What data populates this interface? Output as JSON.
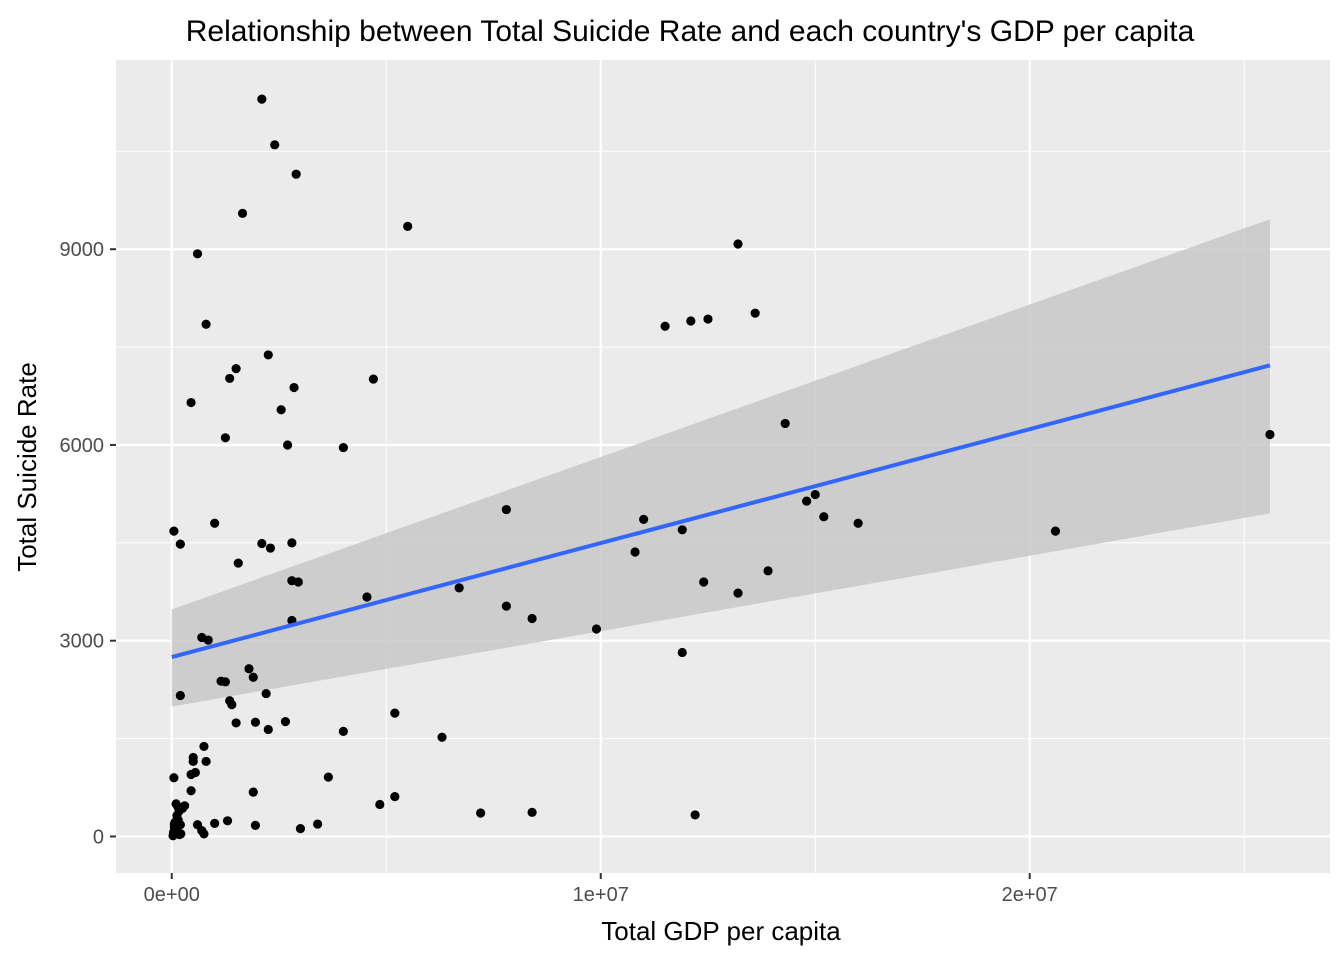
{
  "chart_data": {
    "type": "scatter",
    "title": "Relationship between Total Suicide Rate and each country's GDP per capita",
    "xlabel": "Total GDP per capita",
    "ylabel": "Total Suicide Rate",
    "xlim": [
      -1300000,
      27000000
    ],
    "ylim": [
      -560,
      11900
    ],
    "x_ticks": [
      {
        "value": 0,
        "label": "0e+00"
      },
      {
        "value": 10000000,
        "label": "1e+07"
      },
      {
        "value": 20000000,
        "label": "2e+07"
      }
    ],
    "y_ticks": [
      {
        "value": 0,
        "label": "0"
      },
      {
        "value": 3000,
        "label": "3000"
      },
      {
        "value": 6000,
        "label": "6000"
      },
      {
        "value": 9000,
        "label": "9000"
      }
    ],
    "grid": true,
    "legend": "none",
    "colors": {
      "panel": "#ebebeb",
      "grid": "#ffffff",
      "points": "#000000",
      "fit_line": "#3366ff",
      "confidence_band": "#c8c8c8"
    },
    "fit": {
      "method": "linear",
      "x": [
        0,
        25600000
      ],
      "y": [
        2750,
        7220
      ],
      "ci_lower": [
        1990,
        4950
      ],
      "ci_upper": [
        3480,
        9460
      ]
    },
    "points": [
      [
        2100000,
        11300
      ],
      [
        2400000,
        10600
      ],
      [
        2900000,
        10150
      ],
      [
        1650000,
        9550
      ],
      [
        5500000,
        9350
      ],
      [
        600000,
        8930
      ],
      [
        13200000,
        9080
      ],
      [
        12500000,
        7930
      ],
      [
        12100000,
        7900
      ],
      [
        11500000,
        7820
      ],
      [
        13600000,
        8020
      ],
      [
        800000,
        7850
      ],
      [
        1500000,
        7170
      ],
      [
        1350000,
        7020
      ],
      [
        2250000,
        7380
      ],
      [
        2850000,
        6880
      ],
      [
        4700000,
        7010
      ],
      [
        450000,
        6650
      ],
      [
        2550000,
        6540
      ],
      [
        2700000,
        6000
      ],
      [
        4000000,
        5960
      ],
      [
        1250000,
        6110
      ],
      [
        14300000,
        6330
      ],
      [
        25600000,
        6160
      ],
      [
        7800000,
        5010
      ],
      [
        11000000,
        4860
      ],
      [
        10800000,
        4360
      ],
      [
        11900000,
        4700
      ],
      [
        15000000,
        5240
      ],
      [
        14800000,
        5140
      ],
      [
        15200000,
        4900
      ],
      [
        16000000,
        4800
      ],
      [
        20600000,
        4680
      ],
      [
        50000,
        4680
      ],
      [
        200000,
        4480
      ],
      [
        1000000,
        4800
      ],
      [
        2100000,
        4490
      ],
      [
        2300000,
        4420
      ],
      [
        2800000,
        4500
      ],
      [
        1550000,
        4190
      ],
      [
        2800000,
        3920
      ],
      [
        2950000,
        3900
      ],
      [
        4550000,
        3670
      ],
      [
        6700000,
        3810
      ],
      [
        7800000,
        3530
      ],
      [
        8400000,
        3340
      ],
      [
        9900000,
        3180
      ],
      [
        12400000,
        3900
      ],
      [
        13900000,
        4070
      ],
      [
        13200000,
        3730
      ],
      [
        11900000,
        2820
      ],
      [
        2800000,
        3310
      ],
      [
        700000,
        3050
      ],
      [
        850000,
        3010
      ],
      [
        1150000,
        2380
      ],
      [
        1250000,
        2370
      ],
      [
        1800000,
        2570
      ],
      [
        1900000,
        2440
      ],
      [
        2200000,
        2190
      ],
      [
        200000,
        2160
      ],
      [
        1350000,
        2080
      ],
      [
        1400000,
        2020
      ],
      [
        1500000,
        1740
      ],
      [
        1950000,
        1750
      ],
      [
        2250000,
        1640
      ],
      [
        2650000,
        1760
      ],
      [
        4000000,
        1610
      ],
      [
        5200000,
        1890
      ],
      [
        6300000,
        1520
      ],
      [
        750000,
        1380
      ],
      [
        500000,
        1150
      ],
      [
        500000,
        1210
      ],
      [
        800000,
        1150
      ],
      [
        450000,
        950
      ],
      [
        550000,
        980
      ],
      [
        50000,
        900
      ],
      [
        450000,
        700
      ],
      [
        1900000,
        680
      ],
      [
        3650000,
        910
      ],
      [
        4850000,
        490
      ],
      [
        5200000,
        610
      ],
      [
        7200000,
        360
      ],
      [
        8400000,
        370
      ],
      [
        12200000,
        330
      ],
      [
        3000000,
        120
      ],
      [
        3400000,
        190
      ],
      [
        1950000,
        170
      ],
      [
        1300000,
        240
      ],
      [
        1000000,
        200
      ],
      [
        600000,
        180
      ],
      [
        700000,
        90
      ],
      [
        750000,
        40
      ],
      [
        30000,
        10
      ],
      [
        60000,
        190
      ],
      [
        90000,
        150
      ],
      [
        100000,
        110
      ],
      [
        150000,
        450
      ],
      [
        180000,
        30
      ],
      [
        250000,
        430
      ],
      [
        300000,
        470
      ],
      [
        170000,
        390
      ],
      [
        100000,
        500
      ],
      [
        150000,
        250
      ],
      [
        200000,
        180
      ],
      [
        40000,
        60
      ],
      [
        80000,
        220
      ],
      [
        130000,
        80
      ],
      [
        60000,
        140
      ],
      [
        120000,
        320
      ],
      [
        210000,
        40
      ]
    ]
  }
}
